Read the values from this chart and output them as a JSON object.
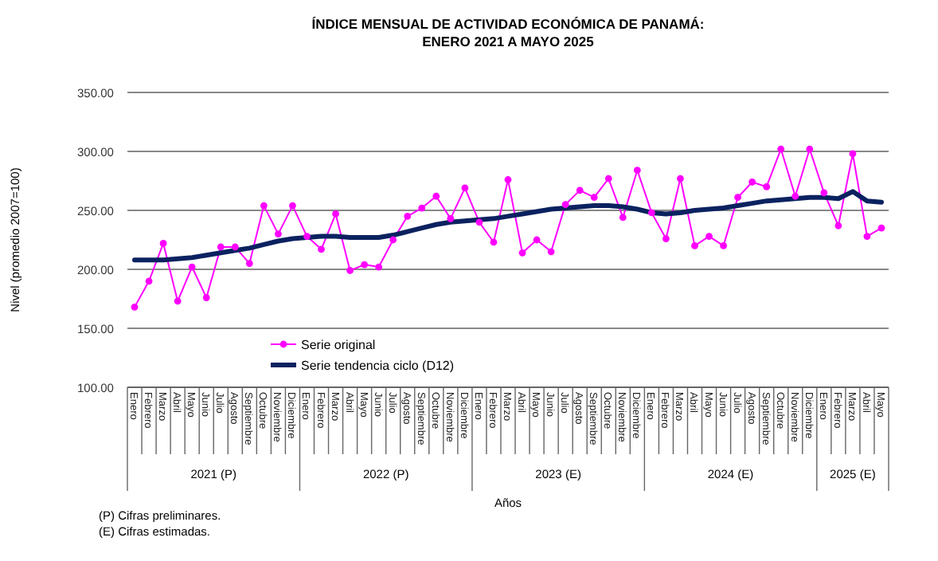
{
  "chart_data": {
    "type": "line",
    "title": "ÍNDICE MENSUAL DE ACTIVIDAD ECONÓMICA DE PANAMÁ:\nENERO 2021 A MAYO 2025",
    "xlabel": "Años",
    "ylabel": "Nivel (promedio 2007=100)",
    "categories": [
      "Enero",
      "Febrero",
      "Marzo",
      "Abril",
      "Mayo",
      "Junio",
      "Julio",
      "Agosto",
      "Septiembre",
      "Octubre",
      "Noviembre",
      "Diciembre",
      "Enero",
      "Febrero",
      "Marzo",
      "Abril",
      "Mayo",
      "Junio",
      "Julio",
      "Agosto",
      "Septiembre",
      "Octubre",
      "Noviembre",
      "Diciembre",
      "Enero",
      "Febrero",
      "Marzo",
      "Abril",
      "Mayo",
      "Junio",
      "Julio",
      "Agosto",
      "Septiembre",
      "Octubre",
      "Noviembre",
      "Diciembre",
      "Enero",
      "Febrero",
      "Marzo",
      "Abril",
      "Mayo",
      "Junio",
      "Julio",
      "Agosto",
      "Septiembre",
      "Octubre",
      "Noviembre",
      "Diciembre",
      "Enero",
      "Febrero",
      "Marzo",
      "Abril",
      "Mayo"
    ],
    "series": [
      {
        "name": "Serie original",
        "color": "#ff00ff",
        "marker": "circle",
        "values": [
          168,
          190,
          222,
          173,
          202,
          176,
          219,
          219,
          205,
          254,
          230,
          254,
          228,
          217,
          247,
          199,
          204,
          202,
          225,
          245,
          252,
          262,
          243,
          269,
          240,
          223,
          276,
          214,
          225,
          215,
          255,
          267,
          261,
          277,
          244,
          284,
          248,
          226,
          277,
          220,
          228,
          220,
          261,
          274,
          270,
          302,
          262,
          302,
          265,
          237,
          298,
          228,
          235
        ]
      },
      {
        "name": "Serie tendencia ciclo (D12)",
        "color": "#0b2260",
        "marker": "none",
        "values": [
          208,
          208,
          208,
          209,
          210,
          212,
          214,
          216,
          218,
          221,
          224,
          226,
          227,
          228,
          228,
          227,
          227,
          227,
          229,
          232,
          235,
          238,
          240,
          241,
          242,
          243,
          245,
          247,
          249,
          251,
          252,
          253,
          254,
          254,
          253,
          251,
          248,
          247,
          248,
          250,
          251,
          252,
          254,
          256,
          258,
          259,
          260,
          261,
          261,
          260,
          266,
          258,
          257
        ]
      }
    ],
    "ylim": [
      100,
      350
    ],
    "yticks": [
      {
        "value": 100,
        "label": "100.00"
      },
      {
        "value": 150,
        "label": "150.00"
      },
      {
        "value": 200,
        "label": "200.00"
      },
      {
        "value": 250,
        "label": "250.00"
      },
      {
        "value": 300,
        "label": "300.00"
      },
      {
        "value": 350,
        "label": "350.00"
      }
    ],
    "grid": "y",
    "legend": "bottom left",
    "annotations": [
      "2021 (P)",
      "2022 (P)",
      "2023 (E)",
      "2024 (E)",
      "2025 (E)",
      "(P) Cifras preliminares.",
      "(E) Cifras estimadas."
    ]
  }
}
